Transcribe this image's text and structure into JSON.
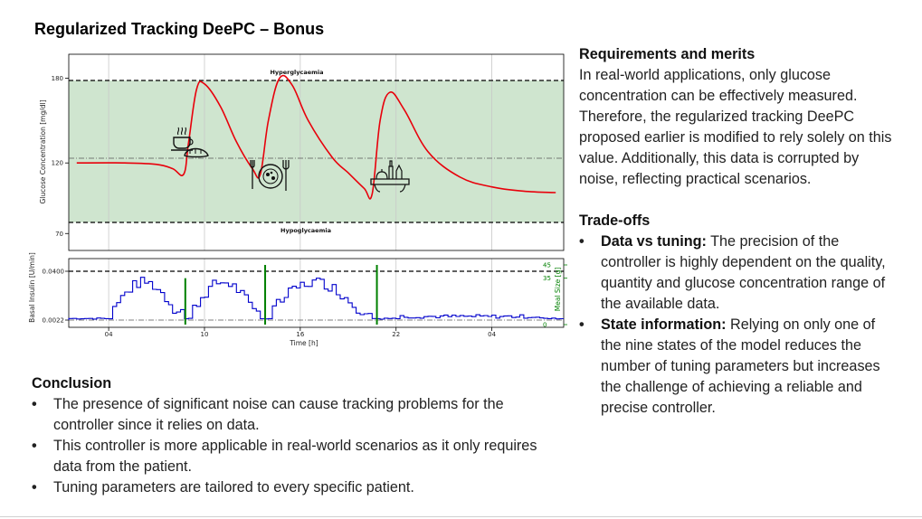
{
  "title": "Regularized Tracking DeePC – Bonus",
  "requirements": {
    "heading": "Requirements and merits",
    "text": "In real-world applications, only glucose concentration can be effectively measured. Therefore, the regularized tracking DeePC proposed earlier is modified to rely solely on this value. Additionally, this data is corrupted by noise, reflecting practical scenarios."
  },
  "tradeoffs": {
    "heading": "Trade-offs",
    "items": [
      {
        "term": "Data vs tuning:",
        "text": " The precision of the controller is highly dependent on the quality, quantity and glucose concentration range of the available data."
      },
      {
        "term": "State information:",
        "text": " Relying on only one of the nine states of the model reduces the number of tuning parameters but increases the challenge of achieving a reliable and precise controller."
      }
    ]
  },
  "conclusion": {
    "heading": "Conclusion",
    "items": [
      "The presence of significant noise can cause tracking problems for the controller since it relies on data.",
      "This controller is more applicable in real-world scenarios as it only requires data from the patient.",
      "Tuning parameters are tailored to every specific patient."
    ]
  },
  "chart_data": [
    {
      "type": "line",
      "ylabel": "Glucose Concentration [mg/dl]",
      "yticks": [
        70,
        120,
        180
      ],
      "ylim": [
        58,
        197
      ],
      "xlim": [
        1.5,
        32.5
      ],
      "safe_band": [
        70,
        180
      ],
      "setpoint": 120,
      "annotations": [
        "Hyperglycaemia",
        "Hypoglycaemia"
      ],
      "band_color": "#cfe5cf",
      "line_color": "#e8000b",
      "series": [
        {
          "x": [
            2,
            5,
            7,
            8,
            8.7,
            9,
            9.5,
            10,
            11,
            12,
            13,
            13.5,
            14,
            14.7,
            15.5,
            16.5,
            18,
            19,
            20,
            20.5,
            21,
            21.6,
            22.5,
            24,
            26,
            28,
            30,
            32
          ],
          "y": [
            120,
            120,
            119,
            116,
            112,
            134,
            172,
            176,
            160,
            135,
            116,
            112,
            150,
            180,
            175,
            150,
            124,
            113,
            102,
            98,
            150,
            170,
            158,
            128,
            110,
            103,
            100,
            99
          ]
        }
      ]
    },
    {
      "type": "line",
      "xlabel": "Time [h]",
      "xticks": [
        "04",
        "10",
        "16",
        "22",
        "04"
      ],
      "ylabel": "Basal Insulin [U/min]",
      "yticks": [
        "0.0022",
        "0.0400"
      ],
      "y2label": "Meal Size [g]",
      "y2ticks": [
        0,
        35,
        45
      ],
      "line_color": "#0000cc",
      "meal_color": "#008000",
      "meals": [
        {
          "x": 8.8,
          "size": 35
        },
        {
          "x": 13.8,
          "size": 45
        },
        {
          "x": 20.8,
          "size": 45
        }
      ]
    }
  ],
  "colors": {
    "accent": "#e8000b",
    "insulin": "#0000cc",
    "meal": "#008000"
  },
  "icons": [
    "coffee-croissant-icon",
    "lunch-plate-icon",
    "dinner-table-icon"
  ]
}
